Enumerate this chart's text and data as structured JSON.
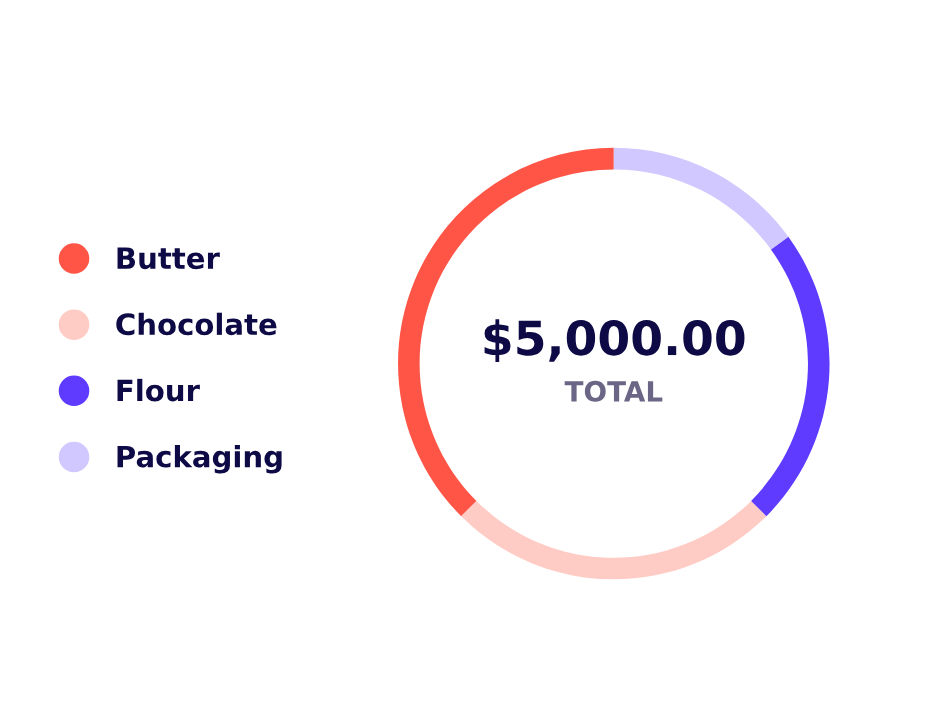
{
  "chart_data": {
    "type": "donut",
    "categories": [
      "Butter",
      "Chocolate",
      "Flour",
      "Packaging"
    ],
    "values": [
      37.5,
      25,
      22.5,
      15
    ],
    "colors": [
      "#ff5547",
      "#ffccc5",
      "#5e3bff",
      "#d0c8ff"
    ],
    "annotations": [
      "$5,000.00",
      "TOTAL"
    ],
    "legend": "left"
  }
}
